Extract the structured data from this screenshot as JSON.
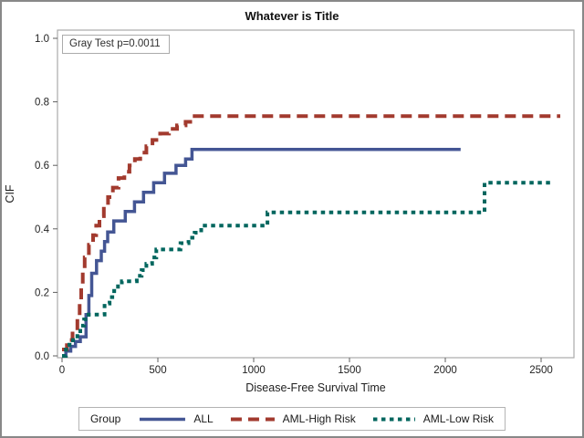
{
  "header": {
    "title": "Whatever is Title"
  },
  "annotation": {
    "text": "Gray Test p=0.0011"
  },
  "legend": {
    "group_label": "Group"
  },
  "colors": {
    "all": "#445694",
    "aml_high": "#A23A2E",
    "aml_low": "#01665E",
    "frame": "#ababab",
    "tick": "#5f5f5f",
    "text": "#1f1f1f",
    "border": "#888888"
  },
  "chart_data": {
    "type": "line",
    "subtype": "step",
    "title": "Whatever is Title",
    "annotation": "Gray Test p=0.0011",
    "xlabel": "Disease-Free Survival Time",
    "ylabel": "CIF",
    "xlim": [
      0,
      2700
    ],
    "ylim": [
      0,
      1.03
    ],
    "xticks": [
      0,
      500,
      1000,
      1500,
      2000,
      2500
    ],
    "yticks": [
      0.0,
      0.2,
      0.4,
      0.6,
      0.8,
      1.0
    ],
    "grid": false,
    "legend_position": "bottom",
    "series": [
      {
        "name": "ALL",
        "color": "#445694",
        "dash": "solid",
        "width": 3.5,
        "end": 2080,
        "points": [
          [
            0,
            0
          ],
          [
            20,
            0.015
          ],
          [
            45,
            0.03
          ],
          [
            70,
            0.045
          ],
          [
            95,
            0.06
          ],
          [
            125,
            0.13
          ],
          [
            140,
            0.19
          ],
          [
            155,
            0.26
          ],
          [
            180,
            0.3
          ],
          [
            205,
            0.33
          ],
          [
            222,
            0.36
          ],
          [
            238,
            0.39
          ],
          [
            270,
            0.425
          ],
          [
            330,
            0.455
          ],
          [
            378,
            0.485
          ],
          [
            425,
            0.515
          ],
          [
            478,
            0.545
          ],
          [
            535,
            0.575
          ],
          [
            595,
            0.6
          ],
          [
            645,
            0.62
          ],
          [
            678,
            0.65
          ]
        ]
      },
      {
        "name": "AML-High Risk",
        "color": "#A23A2E",
        "dash": "12 7",
        "width": 4,
        "end": 2600,
        "points": [
          [
            0,
            0.02
          ],
          [
            25,
            0.05
          ],
          [
            55,
            0.08
          ],
          [
            80,
            0.12
          ],
          [
            92,
            0.17
          ],
          [
            100,
            0.22
          ],
          [
            108,
            0.27
          ],
          [
            118,
            0.31
          ],
          [
            140,
            0.35
          ],
          [
            162,
            0.38
          ],
          [
            178,
            0.41
          ],
          [
            195,
            0.44
          ],
          [
            218,
            0.47
          ],
          [
            240,
            0.5
          ],
          [
            265,
            0.53
          ],
          [
            295,
            0.56
          ],
          [
            325,
            0.58
          ],
          [
            352,
            0.6
          ],
          [
            380,
            0.62
          ],
          [
            408,
            0.64
          ],
          [
            440,
            0.66
          ],
          [
            472,
            0.68
          ],
          [
            512,
            0.7
          ],
          [
            558,
            0.715
          ],
          [
            600,
            0.726
          ],
          [
            645,
            0.737
          ],
          [
            680,
            0.755
          ]
        ]
      },
      {
        "name": "AML-Low Risk",
        "color": "#01665E",
        "dash": "4.5 4.5",
        "width": 4,
        "end": 2550,
        "points": [
          [
            0,
            0
          ],
          [
            20,
            0.02
          ],
          [
            38,
            0.035
          ],
          [
            57,
            0.05
          ],
          [
            80,
            0.07
          ],
          [
            95,
            0.095
          ],
          [
            115,
            0.115
          ],
          [
            138,
            0.13
          ],
          [
            222,
            0.165
          ],
          [
            248,
            0.185
          ],
          [
            272,
            0.205
          ],
          [
            292,
            0.225
          ],
          [
            312,
            0.235
          ],
          [
            390,
            0.252
          ],
          [
            415,
            0.27
          ],
          [
            440,
            0.29
          ],
          [
            470,
            0.31
          ],
          [
            492,
            0.335
          ],
          [
            618,
            0.355
          ],
          [
            660,
            0.372
          ],
          [
            692,
            0.388
          ],
          [
            726,
            0.41
          ],
          [
            1072,
            0.452
          ],
          [
            2205,
            0.545
          ]
        ]
      }
    ]
  }
}
